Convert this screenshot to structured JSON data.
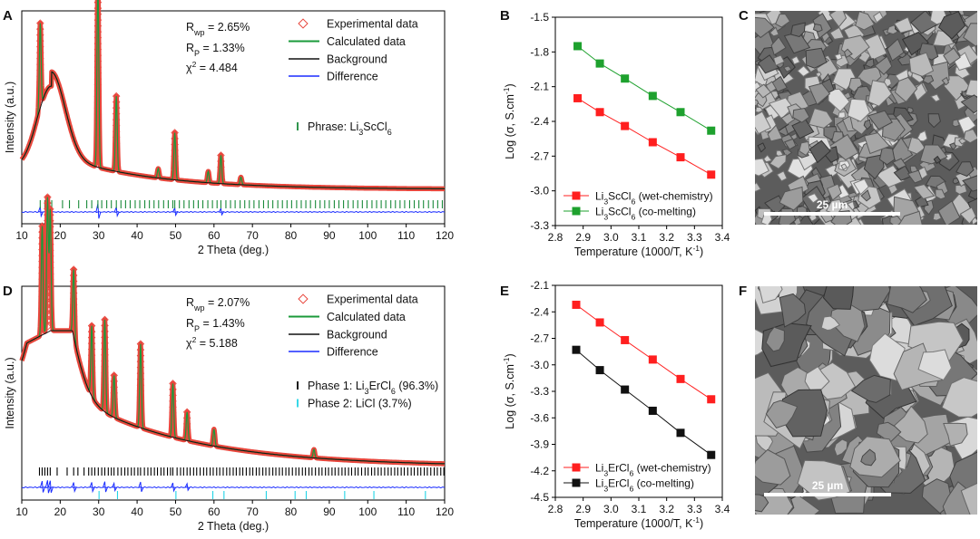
{
  "panels": [
    {
      "id": "A",
      "letter": "A",
      "type": "xrd"
    },
    {
      "id": "B",
      "letter": "B",
      "type": "arrhenius"
    },
    {
      "id": "C",
      "letter": "C",
      "type": "sem"
    },
    {
      "id": "D",
      "letter": "D",
      "type": "xrd"
    },
    {
      "id": "E",
      "letter": "E",
      "type": "arrhenius"
    },
    {
      "id": "F",
      "letter": "F",
      "type": "sem"
    }
  ],
  "colors": {
    "experimental": "#e8463c",
    "calculated": "#1a9a3a",
    "background": "#111111",
    "difference": "#1a2cff",
    "phase_green": "#1a8a3a",
    "phase_black": "#000000",
    "phase_cyan": "#22d4e6",
    "series_red": "#ff1f1f",
    "series_green": "#1ea12e",
    "series_black": "#111111"
  },
  "chart_data": [
    {
      "panel": "A",
      "type": "line",
      "xlabel": "2 Theta (deg.)",
      "ylabel": "Intensity (a.u.)",
      "xlim": [
        10,
        120
      ],
      "xticks": [
        10,
        20,
        30,
        40,
        50,
        60,
        70,
        80,
        90,
        100,
        110,
        120
      ],
      "stats": [
        "R",
        "wp",
        " = 2.65%",
        "R",
        "P",
        " = 1.33%",
        "χ",
        "2",
        " = 4.484"
      ],
      "legend": [
        "Experimental data",
        "Calculated data",
        "Background",
        "Difference"
      ],
      "phase_legend": [
        {
          "label": "Phrase: Li",
          "sub1": "3",
          "mid": "ScCl",
          "sub2": "6",
          "tail": ""
        }
      ],
      "peaks": [
        [
          14.8,
          0.45
        ],
        [
          29.8,
          1.0
        ],
        [
          34.6,
          0.4
        ],
        [
          49.8,
          0.25
        ],
        [
          61.8,
          0.15
        ],
        [
          45.5,
          0.05
        ],
        [
          58.5,
          0.06
        ],
        [
          67.0,
          0.04
        ]
      ],
      "phases": [
        {
          "name": "Li3ScCl6",
          "color": "phase_green",
          "positions": [
            14.8,
            16.0,
            17.8,
            20.6,
            22.4,
            24.8,
            26.9,
            28.2,
            29.8,
            30.8,
            32.1,
            33.3,
            34.6,
            35.8,
            37.0,
            38.2,
            39.5,
            40.7,
            42.0,
            43.2,
            44.4,
            45.6,
            46.9,
            48.1,
            49.3,
            49.8,
            51.0,
            52.2,
            53.5,
            54.7,
            55.9,
            57.1,
            58.4,
            59.6,
            60.8,
            61.8,
            63.1,
            64.3,
            65.5,
            66.8,
            68.0,
            69.2,
            70.4,
            71.7,
            72.9,
            74.1,
            75.3,
            76.6,
            77.8,
            79.0,
            80.2,
            81.5,
            82.7,
            83.9,
            85.1,
            86.4,
            87.6,
            88.8,
            90.0,
            91.3,
            92.5,
            93.7,
            94.9,
            96.2,
            97.4,
            98.6,
            99.8,
            101.1,
            102.3,
            103.5,
            104.7,
            106.0,
            107.2,
            108.4,
            109.6,
            110.9,
            112.1,
            113.3,
            114.5,
            115.8,
            117.0,
            118.2,
            119.4
          ]
        }
      ]
    },
    {
      "panel": "B",
      "type": "line",
      "xlabel": "Temperature (1000/T, K",
      "xlabel_sup": "-1",
      "xlabel_tail": ")",
      "ylabel": "Log (σ, S.cm",
      "ylabel_sup": "-1",
      "ylabel_tail": ")",
      "xlim": [
        2.8,
        3.4
      ],
      "ylim": [
        -3.3,
        -1.5
      ],
      "xticks": [
        "2.8",
        "2.9",
        "3.0",
        "3.1",
        "3.2",
        "3.3",
        "3.4"
      ],
      "yticks": [
        "-1.5",
        "-1.8",
        "-2.1",
        "-2.4",
        "-2.7",
        "-3.0",
        "-3.3"
      ],
      "legend_pos": "bottom-left",
      "series": [
        {
          "name_parts": [
            "Li",
            "3",
            "ScCl",
            "6",
            "  (wet-chemistry)"
          ],
          "color": "series_red",
          "x": [
            2.88,
            2.96,
            3.05,
            3.15,
            3.25,
            3.36
          ],
          "y": [
            -2.2,
            -2.32,
            -2.44,
            -2.58,
            -2.71,
            -2.86
          ]
        },
        {
          "name_parts": [
            "Li",
            "3",
            "ScCl",
            "6",
            "  (co-melting)"
          ],
          "color": "series_green",
          "x": [
            2.88,
            2.96,
            3.05,
            3.15,
            3.25,
            3.36
          ],
          "y": [
            -1.75,
            -1.9,
            -2.03,
            -2.18,
            -2.32,
            -2.48
          ]
        }
      ]
    },
    {
      "panel": "D",
      "type": "line",
      "xlabel": "2 Theta (deg.)",
      "ylabel": "Intensity (a.u.)",
      "xlim": [
        10,
        120
      ],
      "xticks": [
        10,
        20,
        30,
        40,
        50,
        60,
        70,
        80,
        90,
        100,
        110,
        120
      ],
      "stats": [
        "R",
        "wp",
        " = 2.07%",
        "R",
        "P",
        " = 1.43%",
        "χ",
        "2",
        " = 5.188"
      ],
      "legend": [
        "Experimental data",
        "Calculated data",
        "Background",
        "Difference"
      ],
      "phase_legend": [
        {
          "label": "Phase 1: Li",
          "sub1": "3",
          "mid": "ErCl",
          "sub2": "6",
          "tail": " (96.3%)"
        },
        {
          "label": "Phase 2: LiCl (3.7%)",
          "sub1": "",
          "mid": "",
          "sub2": "",
          "tail": ""
        }
      ],
      "peaks": [
        [
          15.3,
          0.65
        ],
        [
          16.7,
          0.8
        ],
        [
          17.4,
          0.72
        ],
        [
          23.5,
          0.4
        ],
        [
          28.2,
          0.42
        ],
        [
          31.6,
          0.55
        ],
        [
          34.0,
          0.25
        ],
        [
          40.9,
          0.5
        ],
        [
          49.3,
          0.32
        ],
        [
          53.0,
          0.17
        ],
        [
          60.0,
          0.1
        ],
        [
          86.0,
          0.05
        ]
      ],
      "phases": [
        {
          "name": "Li3ErCl6",
          "color": "phase_black",
          "positions": [
            14.6,
            15.3,
            16.0,
            16.7,
            17.4,
            19.2,
            21.8,
            23.5,
            24.6,
            26.2,
            27.4,
            28.2,
            29.0,
            29.9,
            30.8,
            31.6,
            32.5,
            33.3,
            34.0,
            35.0,
            35.9,
            36.8,
            37.6,
            38.5,
            39.3,
            40.2,
            40.9,
            41.9,
            42.8,
            43.6,
            44.5,
            45.3,
            46.2,
            47.0,
            47.9,
            48.7,
            49.3,
            50.4,
            51.3,
            52.1,
            53.0,
            53.8,
            54.7,
            55.5,
            56.4,
            57.3,
            58.1,
            59.0,
            59.8,
            60.7,
            61.5,
            62.4,
            63.3,
            64.1,
            65.0,
            65.8,
            66.7,
            67.5,
            68.4,
            69.3,
            70.1,
            71.0,
            71.8,
            72.7,
            73.5,
            74.4,
            75.3,
            76.1,
            77.0,
            77.8,
            78.7,
            79.5,
            80.4,
            81.3,
            82.1,
            83.0,
            83.8,
            84.7,
            85.5,
            86.4,
            87.3,
            88.1,
            89.0,
            89.8,
            90.7,
            91.5,
            92.4,
            93.3,
            94.1,
            95.0,
            95.8,
            96.7,
            97.5,
            98.4,
            99.3,
            100.1,
            101.0,
            101.8,
            102.7,
            103.5,
            104.4,
            105.3,
            106.1,
            107.0,
            107.8,
            108.7,
            109.5,
            110.4,
            111.3,
            112.1,
            113.0,
            113.8,
            114.7,
            115.5,
            116.4,
            117.3,
            118.1,
            119.0,
            119.8
          ]
        },
        {
          "name": "LiCl",
          "color": "phase_cyan",
          "positions": [
            30.1,
            34.9,
            50.1,
            59.7,
            62.6,
            73.6,
            81.1,
            84.0,
            94.0,
            101.6,
            115.0
          ]
        }
      ]
    },
    {
      "panel": "E",
      "type": "line",
      "xlabel": "Temperature (1000/T, K",
      "xlabel_sup": "-1",
      "xlabel_tail": ")",
      "ylabel": "Log (σ, S.cm",
      "ylabel_sup": "-1",
      "ylabel_tail": ")",
      "xlim": [
        2.8,
        3.4
      ],
      "ylim": [
        -4.5,
        -2.1
      ],
      "xticks": [
        "2.8",
        "2.9",
        "3.0",
        "3.1",
        "3.2",
        "3.3",
        "3.4"
      ],
      "yticks": [
        "-2.1",
        "-2.4",
        "-2.7",
        "-3.0",
        "-3.3",
        "-3.6",
        "-3.9",
        "-4.2",
        "-4.5"
      ],
      "legend_pos": "bottom-left",
      "series": [
        {
          "name_parts": [
            "Li",
            "3",
            "ErCl",
            "6",
            " (wet-chemistry)"
          ],
          "color": "series_red",
          "x": [
            2.875,
            2.96,
            3.05,
            3.15,
            3.25,
            3.36
          ],
          "y": [
            -2.32,
            -2.52,
            -2.72,
            -2.94,
            -3.16,
            -3.39
          ]
        },
        {
          "name_parts": [
            "Li",
            "3",
            "ErCl",
            "6",
            " (co-melting)"
          ],
          "color": "series_black",
          "x": [
            2.875,
            2.96,
            3.05,
            3.15,
            3.25,
            3.36
          ],
          "y": [
            -2.83,
            -3.06,
            -3.28,
            -3.52,
            -3.77,
            -4.02
          ]
        }
      ]
    }
  ],
  "sem": [
    {
      "panel": "C",
      "scale_label": "25 µm"
    },
    {
      "panel": "F",
      "scale_label": "25 µm"
    }
  ]
}
